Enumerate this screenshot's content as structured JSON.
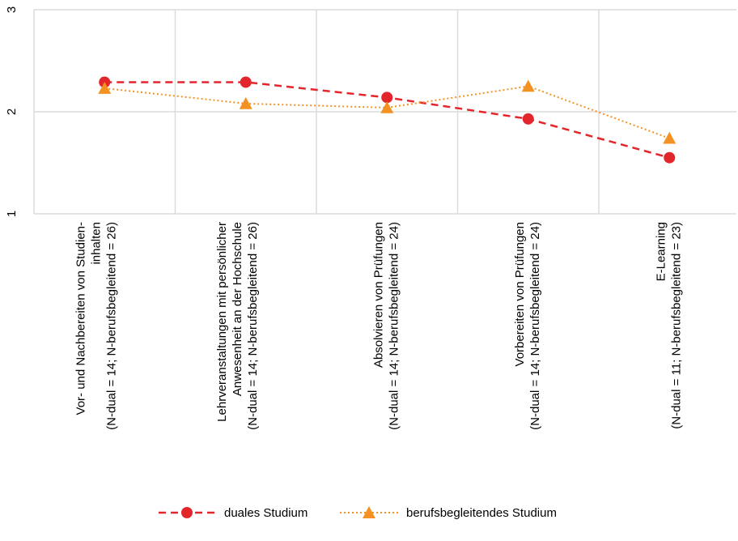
{
  "chart_data": {
    "type": "line",
    "categories": [
      [
        "Vor- und Nachbereiten von Studien-",
        "inhalten",
        "(N-dual = 14; N-berufsbegleitend = 26)"
      ],
      [
        "Lehrveranstaltungen mit persönlicher",
        "Anwesenheit an der Hochschule",
        "(N-dual = 14; N-berufsbegleitend = 26)"
      ],
      [
        "Absolvieren von Prüfungen",
        "(N-dual = 14; N-berufsbegleitend = 24)"
      ],
      [
        "Vorbereiten von Prüfungen",
        "(N-dual = 14; N-berufsbegleitend = 24)"
      ],
      [
        "E-Learning",
        "(N-dual = 11; N-berufsbegleitend = 23)"
      ]
    ],
    "series": [
      {
        "name": "duales Studium",
        "values": [
          2.29,
          2.29,
          2.14,
          1.93,
          1.55
        ],
        "color": "#e3262b",
        "marker": "circle",
        "line_style": "dashed"
      },
      {
        "name": "berufsbegleitendes Studium",
        "values": [
          2.23,
          2.08,
          2.04,
          2.25,
          1.74
        ],
        "color": "#f39222",
        "marker": "triangle",
        "line_style": "dotted"
      }
    ],
    "y_ticks": [
      "1",
      "2",
      "3"
    ],
    "ylim": [
      1,
      3
    ],
    "grid": true,
    "legend_position": "bottom"
  }
}
